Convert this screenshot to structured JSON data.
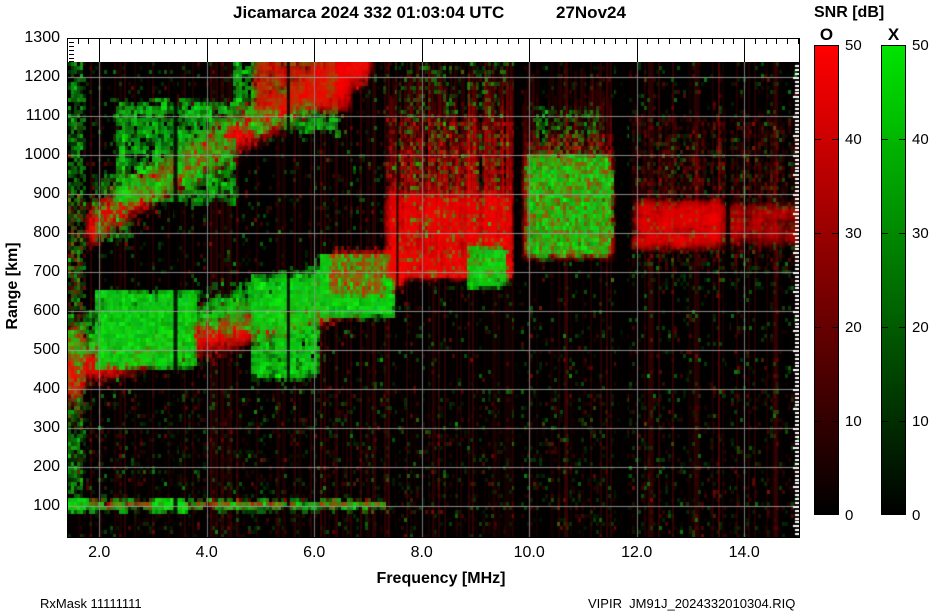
{
  "header": {
    "title": "Jicamarca 2024 332 01:03:04 UTC",
    "date": "27Nov24"
  },
  "footer": {
    "left": "RxMask 11111111",
    "right": "VIPIR  JM91J_2024332010304.RIQ"
  },
  "colorbar": {
    "title": "SNR [dB]",
    "min": 0,
    "max": 50,
    "ticks": [
      0,
      10,
      20,
      30,
      40,
      50
    ],
    "bars": [
      {
        "label": "O",
        "color": "#ff0000"
      },
      {
        "label": "X",
        "color": "#00e400"
      }
    ]
  },
  "chart_data": {
    "type": "heatmap",
    "title": "Jicamarca 2024 332 01:03:04 UTC  27Nov24",
    "xlabel": "Frequency [MHz]",
    "ylabel": "Range [km]",
    "xlim": [
      1.42,
      15.02
    ],
    "ylim": [
      20,
      1300
    ],
    "data_top_km": 1238,
    "data_bottom_km": 20,
    "grid": true,
    "legend_title": "SNR [dB]",
    "legend_entries": [
      "O",
      "X"
    ],
    "snr_scale_db": [
      0,
      50
    ],
    "x_ticks": [
      {
        "v": 2.0,
        "label": "2.0"
      },
      {
        "v": 4.0,
        "label": "4.0"
      },
      {
        "v": 6.0,
        "label": "6.0"
      },
      {
        "v": 8.0,
        "label": "8.0"
      },
      {
        "v": 10.0,
        "label": "10.0"
      },
      {
        "v": 12.0,
        "label": "12.0"
      },
      {
        "v": 14.0,
        "label": "14.0"
      }
    ],
    "x_minor_step": 0.2,
    "y_ticks": [
      100,
      200,
      300,
      400,
      500,
      600,
      700,
      800,
      900,
      1000,
      1100,
      1200,
      1300
    ],
    "colors": {
      "o": "#ff0000",
      "x": "#00e400",
      "background": "#000000",
      "grid": "#969696"
    },
    "seed": 1337,
    "noise": {
      "green_count": 2400,
      "red_count": 1700,
      "striation_step": 2
    },
    "gaps": [
      {
        "f": 3.42,
        "w": 4
      },
      {
        "f": 5.52,
        "w": 3
      },
      {
        "f": 7.55,
        "w": 2
      },
      {
        "f": 9.78,
        "w": 7
      },
      {
        "f": 11.72,
        "w": 12
      },
      {
        "f": 13.7,
        "w": 4
      }
    ],
    "features": [
      {
        "kind": "glow",
        "f0": 1.42,
        "f1": 1.66,
        "r0": 380,
        "r1": 560,
        "count": 260,
        "alpha": 0.1,
        "size": 7
      },
      {
        "kind": "band",
        "mode": "o",
        "path": [
          [
            1.42,
            455
          ],
          [
            2.6,
            495
          ],
          [
            4.0,
            540
          ],
          [
            5.2,
            580
          ],
          [
            6.0,
            615
          ],
          [
            6.7,
            650
          ],
          [
            7.2,
            685
          ],
          [
            7.65,
            720
          ]
        ],
        "hw": 58,
        "count": 5200,
        "bright": 0.55,
        "glow": true
      },
      {
        "kind": "band",
        "mode": "x",
        "path": [
          [
            1.42,
            520
          ],
          [
            2.4,
            550
          ],
          [
            3.4,
            580
          ],
          [
            4.4,
            608
          ],
          [
            5.2,
            628
          ],
          [
            6.0,
            655
          ],
          [
            6.6,
            675
          ]
        ],
        "hw": 60,
        "count": 1500,
        "bright": 0.8
      },
      {
        "kind": "box",
        "mode": "x",
        "f0": 1.95,
        "f1": 3.75,
        "r0": 460,
        "r1": 650,
        "count": 2100,
        "bright": 0.85
      },
      {
        "kind": "box",
        "mode": "x",
        "f0": 4.85,
        "f1": 6.05,
        "r0": 430,
        "r1": 690,
        "count": 1500,
        "bright": 0.8
      },
      {
        "kind": "box",
        "mode": "x",
        "f0": 6.1,
        "f1": 7.45,
        "r0": 590,
        "r1": 745,
        "count": 1700,
        "bright": 0.9
      },
      {
        "kind": "box",
        "mode": "o",
        "f0": 6.3,
        "f1": 7.3,
        "r0": 640,
        "r1": 760,
        "count": 600,
        "bright": 0.5
      },
      {
        "kind": "glow",
        "f0": 7.35,
        "f1": 9.65,
        "r0": 690,
        "r1": 900,
        "count": 1500,
        "alpha": 0.09,
        "size": 8
      },
      {
        "kind": "vstreaks",
        "f0": 7.4,
        "f1": 9.7,
        "r0": 690,
        "r1": 1245,
        "n": 260,
        "alpha": 0.22
      },
      {
        "kind": "box",
        "mode": "o",
        "f0": 7.35,
        "f1": 9.7,
        "r0": 690,
        "r1": 1100,
        "count": 2600,
        "bright": 0.5,
        "fade": "up"
      },
      {
        "kind": "box",
        "mode": "x",
        "f0": 7.5,
        "f1": 9.6,
        "r0": 690,
        "r1": 1240,
        "count": 650,
        "bright": 0.65
      },
      {
        "kind": "box",
        "mode": "x",
        "f0": 8.85,
        "f1": 9.55,
        "r0": 665,
        "r1": 760,
        "count": 350,
        "bright": 0.9
      },
      {
        "kind": "band",
        "mode": "o",
        "path": [
          [
            1.8,
            815
          ],
          [
            2.6,
            890
          ],
          [
            3.4,
            958
          ],
          [
            4.2,
            1028
          ],
          [
            5.0,
            1092
          ],
          [
            5.8,
            1152
          ],
          [
            6.5,
            1210
          ],
          [
            7.0,
            1248
          ]
        ],
        "hw": 62,
        "count": 3600,
        "bright": 0.5,
        "glow": true
      },
      {
        "kind": "box",
        "mode": "x",
        "f0": 2.3,
        "f1": 4.5,
        "r0": 880,
        "r1": 1140,
        "count": 1400,
        "bright": 0.75
      },
      {
        "kind": "box",
        "mode": "x",
        "f0": 4.5,
        "f1": 6.4,
        "r0": 1060,
        "r1": 1248,
        "count": 700,
        "bright": 0.8
      },
      {
        "kind": "glow",
        "f0": 4.9,
        "f1": 6.6,
        "r0": 1120,
        "r1": 1248,
        "count": 500,
        "alpha": 0.1,
        "size": 8
      },
      {
        "kind": "box",
        "mode": "x",
        "f0": 1.9,
        "f1": 2.6,
        "r0": 780,
        "r1": 950,
        "count": 300,
        "bright": 0.6
      },
      {
        "kind": "glow",
        "f0": 9.9,
        "f1": 11.55,
        "r0": 740,
        "r1": 1000,
        "count": 700,
        "alpha": 0.08,
        "size": 8
      },
      {
        "kind": "vstreaks",
        "f0": 9.9,
        "f1": 11.55,
        "r0": 740,
        "r1": 1245,
        "n": 120,
        "alpha": 0.15
      },
      {
        "kind": "box",
        "mode": "x",
        "f0": 9.95,
        "f1": 11.5,
        "r0": 745,
        "r1": 1000,
        "count": 2600,
        "bright": 0.85
      },
      {
        "kind": "box",
        "mode": "x",
        "f0": 10.1,
        "f1": 11.4,
        "r0": 1000,
        "r1": 1120,
        "count": 260,
        "bright": 0.6
      },
      {
        "kind": "box",
        "mode": "o",
        "f0": 9.9,
        "f1": 11.55,
        "r0": 740,
        "r1": 1050,
        "count": 900,
        "bright": 0.45
      },
      {
        "kind": "glow",
        "f0": 11.95,
        "f1": 13.5,
        "r0": 770,
        "r1": 880,
        "count": 700,
        "alpha": 0.085,
        "size": 8
      },
      {
        "kind": "glow",
        "f0": 13.4,
        "f1": 15.02,
        "r0": 780,
        "r1": 870,
        "count": 400,
        "alpha": 0.06,
        "size": 8
      },
      {
        "kind": "box",
        "mode": "o",
        "f0": 11.95,
        "f1": 15.02,
        "r0": 700,
        "r1": 1100,
        "count": 1200,
        "bright": 0.3
      },
      {
        "kind": "vstreaks",
        "f0": 11.9,
        "f1": 15.0,
        "r0": 750,
        "r1": 1150,
        "n": 90,
        "alpha": 0.1
      },
      {
        "kind": "box",
        "mode": "x",
        "f0": 11.9,
        "f1": 15.0,
        "r0": 650,
        "r1": 1050,
        "count": 300,
        "bright": 0.4
      },
      {
        "kind": "box",
        "mode": "x",
        "f0": 1.42,
        "f1": 7.3,
        "r0": 96,
        "r1": 112,
        "count": 420,
        "bright": 0.8
      },
      {
        "kind": "box",
        "mode": "o",
        "f0": 1.8,
        "f1": 7.3,
        "r0": 96,
        "r1": 112,
        "count": 260,
        "bright": 0.55
      },
      {
        "kind": "box",
        "mode": "x",
        "f0": 3.0,
        "f1": 3.55,
        "r0": 94,
        "r1": 116,
        "count": 160,
        "bright": 1.0
      },
      {
        "kind": "box",
        "mode": "x",
        "f0": 1.42,
        "f1": 1.75,
        "r0": 92,
        "r1": 118,
        "count": 90,
        "bright": 1.0
      },
      {
        "kind": "box",
        "mode": "x",
        "f0": 1.42,
        "f1": 1.72,
        "r0": 80,
        "r1": 1240,
        "count": 900,
        "bright": 0.6
      },
      {
        "kind": "box",
        "mode": "o",
        "f0": 1.42,
        "f1": 1.72,
        "r0": 300,
        "r1": 900,
        "count": 250,
        "bright": 0.4
      },
      {
        "kind": "box",
        "mode": "o",
        "f0": 1.42,
        "f1": 15.02,
        "r0": 25,
        "r1": 395,
        "count": 900,
        "bright": 0.22
      },
      {
        "kind": "box",
        "mode": "x",
        "f0": 1.42,
        "f1": 15.02,
        "r0": 25,
        "r1": 395,
        "count": 500,
        "bright": 0.3
      }
    ]
  }
}
